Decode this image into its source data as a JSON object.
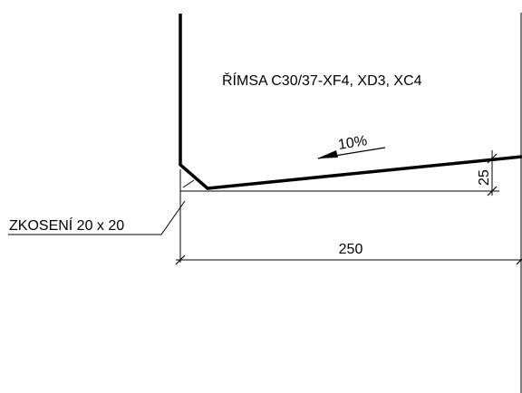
{
  "drawing": {
    "material_label": "ŘÍMSA C30/37-XF4, XD3, XC4",
    "slope_label": "10%",
    "chamfer_label": "ZKOSENÍ 20 x 20",
    "height_dimension": "25",
    "width_dimension": "250"
  },
  "colors": {
    "line": "#000000",
    "background": "#ffffff"
  }
}
